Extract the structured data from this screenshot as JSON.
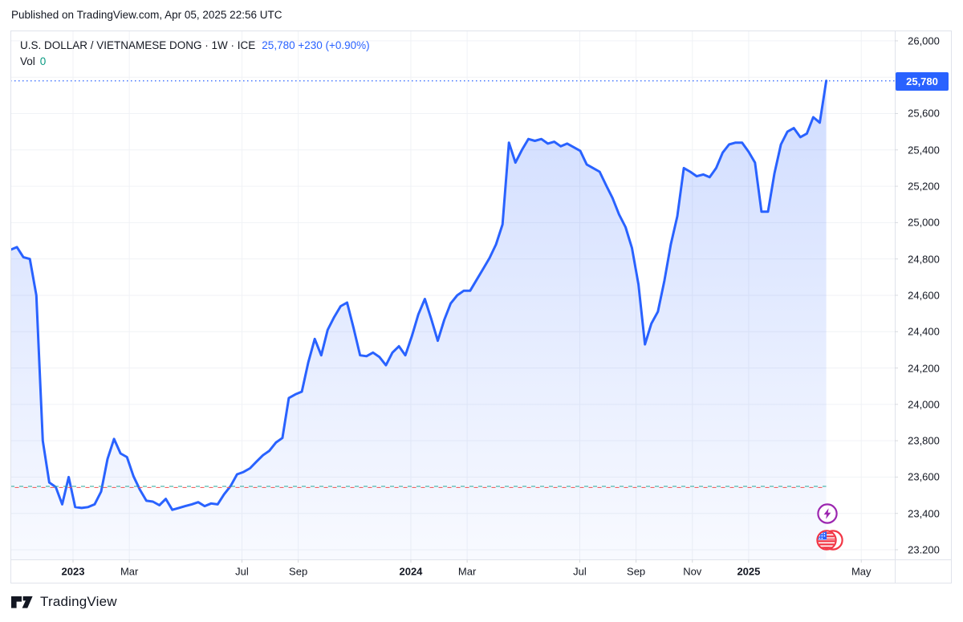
{
  "page": {
    "published_text": "Published on TradingView.com, Apr 05, 2025 22:56 UTC",
    "brand": "TradingView"
  },
  "legend": {
    "symbol_title": "U.S. DOLLAR / VIETNAMESE DONG · 1W · ICE",
    "price": "25,780",
    "change": "+230 (+0.90%)",
    "vol_label": "Vol",
    "vol_value": "0"
  },
  "price_axis": {
    "badge": "25,780",
    "ticks": [
      {
        "label": "26,000",
        "value": 26000
      },
      {
        "label": "25,600",
        "value": 25600
      },
      {
        "label": "25,400",
        "value": 25400
      },
      {
        "label": "25,200",
        "value": 25200
      },
      {
        "label": "25,000",
        "value": 25000
      },
      {
        "label": "24,800",
        "value": 24800
      },
      {
        "label": "24,600",
        "value": 24600
      },
      {
        "label": "24,400",
        "value": 24400
      },
      {
        "label": "24,200",
        "value": 24200
      },
      {
        "label": "24,000",
        "value": 24000
      },
      {
        "label": "23,800",
        "value": 23800
      },
      {
        "label": "23,600",
        "value": 23600
      },
      {
        "label": "23,400",
        "value": 23400
      },
      {
        "label": "23.200",
        "value": 23200
      }
    ]
  },
  "time_axis": {
    "ticks": [
      {
        "label": "2023",
        "month": 0,
        "bold": true
      },
      {
        "label": "Mar",
        "month": 2,
        "bold": false
      },
      {
        "label": "Jul",
        "month": 6,
        "bold": false
      },
      {
        "label": "Sep",
        "month": 8,
        "bold": false
      },
      {
        "label": "2024",
        "month": 12,
        "bold": true
      },
      {
        "label": "Mar",
        "month": 14,
        "bold": false
      },
      {
        "label": "Jul",
        "month": 18,
        "bold": false
      },
      {
        "label": "Sep",
        "month": 20,
        "bold": false
      },
      {
        "label": "Nov",
        "month": 22,
        "bold": false
      },
      {
        "label": "2025",
        "month": 24,
        "bold": true
      },
      {
        "label": "May",
        "month": 28,
        "bold": false
      }
    ]
  },
  "chart_data": {
    "type": "area",
    "title": "U.S. DOLLAR / VIETNAMESE DONG",
    "interval": "1W",
    "exchange": "ICE",
    "last_price": 25780,
    "change": 230,
    "change_pct": "+0.90%",
    "frequency": "weekly",
    "start_date": "2022-10-31",
    "end_date": "2025-03-31",
    "values": [
      24850,
      24865,
      24810,
      24800,
      24600,
      23800,
      23570,
      23545,
      23450,
      23600,
      23435,
      23430,
      23435,
      23450,
      23520,
      23700,
      23810,
      23730,
      23710,
      23605,
      23530,
      23470,
      23465,
      23445,
      23480,
      23420,
      23430,
      23440,
      23450,
      23462,
      23440,
      23455,
      23450,
      23505,
      23550,
      23615,
      23628,
      23648,
      23685,
      23720,
      23745,
      23790,
      23815,
      24035,
      24055,
      24070,
      24230,
      24360,
      24270,
      24410,
      24480,
      24540,
      24560,
      24420,
      24270,
      24265,
      24285,
      24260,
      24215,
      24285,
      24320,
      24270,
      24375,
      24495,
      24580,
      24470,
      24350,
      24465,
      24555,
      24600,
      24625,
      24625,
      24685,
      24745,
      24805,
      24880,
      24990,
      25440,
      25330,
      25400,
      25460,
      25450,
      25460,
      25435,
      25445,
      25420,
      25435,
      25415,
      25395,
      25320,
      25300,
      25280,
      25205,
      25135,
      25045,
      24975,
      24860,
      24660,
      24330,
      24445,
      24510,
      24680,
      24880,
      25035,
      25300,
      25280,
      25255,
      25265,
      25250,
      25300,
      25385,
      25430,
      25440,
      25440,
      25390,
      25330,
      25060,
      25060,
      25270,
      25430,
      25500,
      25520,
      25470,
      25490,
      25580,
      25550,
      25780
    ],
    "current_price_line": 25780,
    "reference_lines": [
      {
        "value": 23549,
        "color": "#26a69a",
        "style": "dashed"
      },
      {
        "value": 23543,
        "color": "#ef5350",
        "style": "dashed"
      }
    ],
    "ylim": [
      23147,
      26057
    ],
    "grid": true,
    "grid_step": 200,
    "legend_position": "top-left",
    "line_color": "#2962ff",
    "fill_color_top": "rgba(41,98,255,0.24)",
    "fill_color_bottom": "rgba(41,98,255,0.03)",
    "events": [
      {
        "icon": "lightning",
        "color": "#9c27b0",
        "week": 126
      },
      {
        "icon": "us-flag",
        "color": "#f23645",
        "week": 126
      }
    ]
  }
}
